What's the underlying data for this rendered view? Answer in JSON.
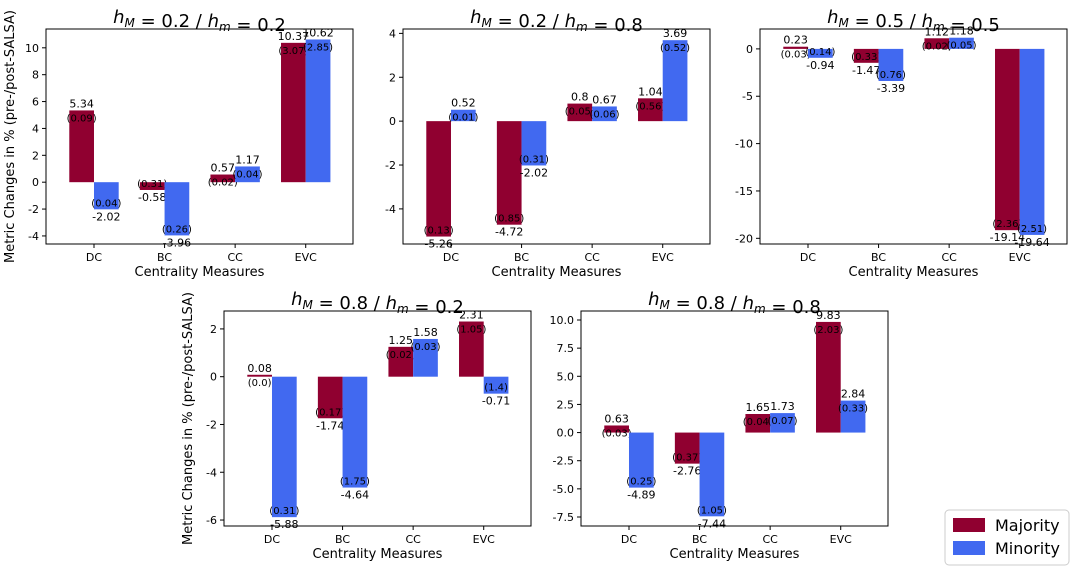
{
  "colors": {
    "majority": "#900030",
    "minority": "#4169f0",
    "axis": "#000000"
  },
  "legend": {
    "placement": "bottom-right",
    "items": [
      "Majority",
      "Minority"
    ]
  },
  "chart_data": [
    {
      "type": "bar",
      "title_main": "h",
      "title_sub1": "M",
      "title_mid": " = 0.2 / ",
      "title_sub2": "m",
      "title_end": " = 0.2",
      "xlabel": "Centrality Measures",
      "ylabel": "Metric Changes in % (pre-/post-SALSA)",
      "categories": [
        "DC",
        "BC",
        "CC",
        "EVC"
      ],
      "ylim": [
        -4.6,
        11.4
      ],
      "yticks": [
        -4,
        -2,
        0,
        2,
        4,
        6,
        8,
        10
      ],
      "series": [
        {
          "name": "Majority",
          "values": [
            5.34,
            -0.58,
            0.57,
            10.37
          ],
          "labels": [
            "5.34",
            "-0.58",
            "0.57",
            "10.37"
          ],
          "errors": [
            "(0.09)",
            "(0.31)",
            "(0.02)",
            "(3.07)"
          ]
        },
        {
          "name": "Minority",
          "values": [
            -2.02,
            -3.96,
            1.17,
            10.62
          ],
          "labels": [
            "-2.02",
            "-3.96",
            "1.17",
            "10.62"
          ],
          "errors": [
            "(0.04)",
            "(0.26)",
            "(0.04)",
            "(2.85)"
          ]
        }
      ]
    },
    {
      "type": "bar",
      "title_main": "h",
      "title_sub1": "M",
      "title_mid": " = 0.2 / ",
      "title_sub2": "m",
      "title_end": " = 0.8",
      "xlabel": "Centrality Measures",
      "ylabel": "",
      "categories": [
        "DC",
        "BC",
        "CC",
        "EVC"
      ],
      "ylim": [
        -5.6,
        4.2
      ],
      "yticks": [
        -4,
        -2,
        0,
        2,
        4
      ],
      "series": [
        {
          "name": "Majority",
          "values": [
            -5.26,
            -4.72,
            0.8,
            1.04
          ],
          "labels": [
            "-5.26",
            "-4.72",
            "0.8",
            "1.04"
          ],
          "errors": [
            "(0.13)",
            "(0.85)",
            "(0.05)",
            "(0.56)"
          ]
        },
        {
          "name": "Minority",
          "values": [
            0.52,
            -2.02,
            0.67,
            3.69
          ],
          "labels": [
            "0.52",
            "-2.02",
            "0.67",
            "3.69"
          ],
          "errors": [
            "(0.01)",
            "(0.31)",
            "(0.06)",
            "(0.52)"
          ]
        }
      ]
    },
    {
      "type": "bar",
      "title_main": "h",
      "title_sub1": "M",
      "title_mid": " = 0.5 / ",
      "title_sub2": "m",
      "title_end": " = 0.5",
      "xlabel": "Centrality Measures",
      "ylabel": "",
      "categories": [
        "DC",
        "BC",
        "CC",
        "EVC"
      ],
      "ylim": [
        -20.6,
        2.1
      ],
      "yticks": [
        -20,
        -15,
        -10,
        -5,
        0
      ],
      "series": [
        {
          "name": "Majority",
          "values": [
            0.23,
            -1.47,
            1.12,
            -19.14
          ],
          "labels": [
            "0.23",
            "-1.47",
            "1.12",
            "-19.14"
          ],
          "errors": [
            "(0.03)",
            "(0.33)",
            "(0.02)",
            "(2.36)"
          ]
        },
        {
          "name": "Minority",
          "values": [
            -0.94,
            -3.39,
            1.18,
            -19.64
          ],
          "labels": [
            "-0.94",
            "-3.39",
            "1.18",
            "-19.64"
          ],
          "errors": [
            "(0.14)",
            "(0.76)",
            "(0.05)",
            "(2.51)"
          ]
        }
      ]
    },
    {
      "type": "bar",
      "title_main": "h",
      "title_sub1": "M",
      "title_mid": " = 0.8 / ",
      "title_sub2": "m",
      "title_end": " = 0.2",
      "xlabel": "Centrality Measures",
      "ylabel": "Metric Changes in % (pre-/post-SALSA)",
      "categories": [
        "DC",
        "BC",
        "CC",
        "EVC"
      ],
      "ylim": [
        -6.25,
        2.75
      ],
      "yticks": [
        -6,
        -4,
        -2,
        0,
        2
      ],
      "series": [
        {
          "name": "Majority",
          "values": [
            0.08,
            -1.74,
            1.25,
            2.31
          ],
          "labels": [
            "0.08",
            "-1.74",
            "1.25",
            "2.31"
          ],
          "errors": [
            "(0.0)",
            "(0.17)",
            "(0.02)",
            "(1.05)"
          ]
        },
        {
          "name": "Minority",
          "values": [
            -5.88,
            -4.64,
            1.58,
            -0.71
          ],
          "labels": [
            "-5.88",
            "-4.64",
            "1.58",
            "-0.71"
          ],
          "errors": [
            "(0.31)",
            "(1.75)",
            "(0.03)",
            "(1.4)"
          ]
        }
      ]
    },
    {
      "type": "bar",
      "title_main": "h",
      "title_sub1": "M",
      "title_mid": " = 0.8 / ",
      "title_sub2": "m",
      "title_end": " = 0.8",
      "xlabel": "Centrality Measures",
      "ylabel": "",
      "categories": [
        "DC",
        "BC",
        "CC",
        "EVC"
      ],
      "ylim": [
        -8.3,
        10.8
      ],
      "yticks": [
        -7.5,
        -5.0,
        -2.5,
        0.0,
        2.5,
        5.0,
        7.5,
        10.0
      ],
      "yticklabels": [
        "-7.5",
        "-5.0",
        "-2.5",
        "0.0",
        "2.5",
        "5.0",
        "7.5",
        "10.0"
      ],
      "series": [
        {
          "name": "Majority",
          "values": [
            0.63,
            -2.76,
            1.65,
            9.83
          ],
          "labels": [
            "0.63",
            "-2.76",
            "1.65",
            "9.83"
          ],
          "errors": [
            "(0.03)",
            "(0.37)",
            "(0.04)",
            "(2.03)"
          ]
        },
        {
          "name": "Minority",
          "values": [
            -4.89,
            -7.44,
            1.73,
            2.84
          ],
          "labels": [
            "-4.89",
            "-7.44",
            "1.73",
            "2.84"
          ],
          "errors": [
            "(0.25)",
            "(1.05)",
            "(0.07)",
            "(0.33)"
          ]
        }
      ]
    }
  ]
}
